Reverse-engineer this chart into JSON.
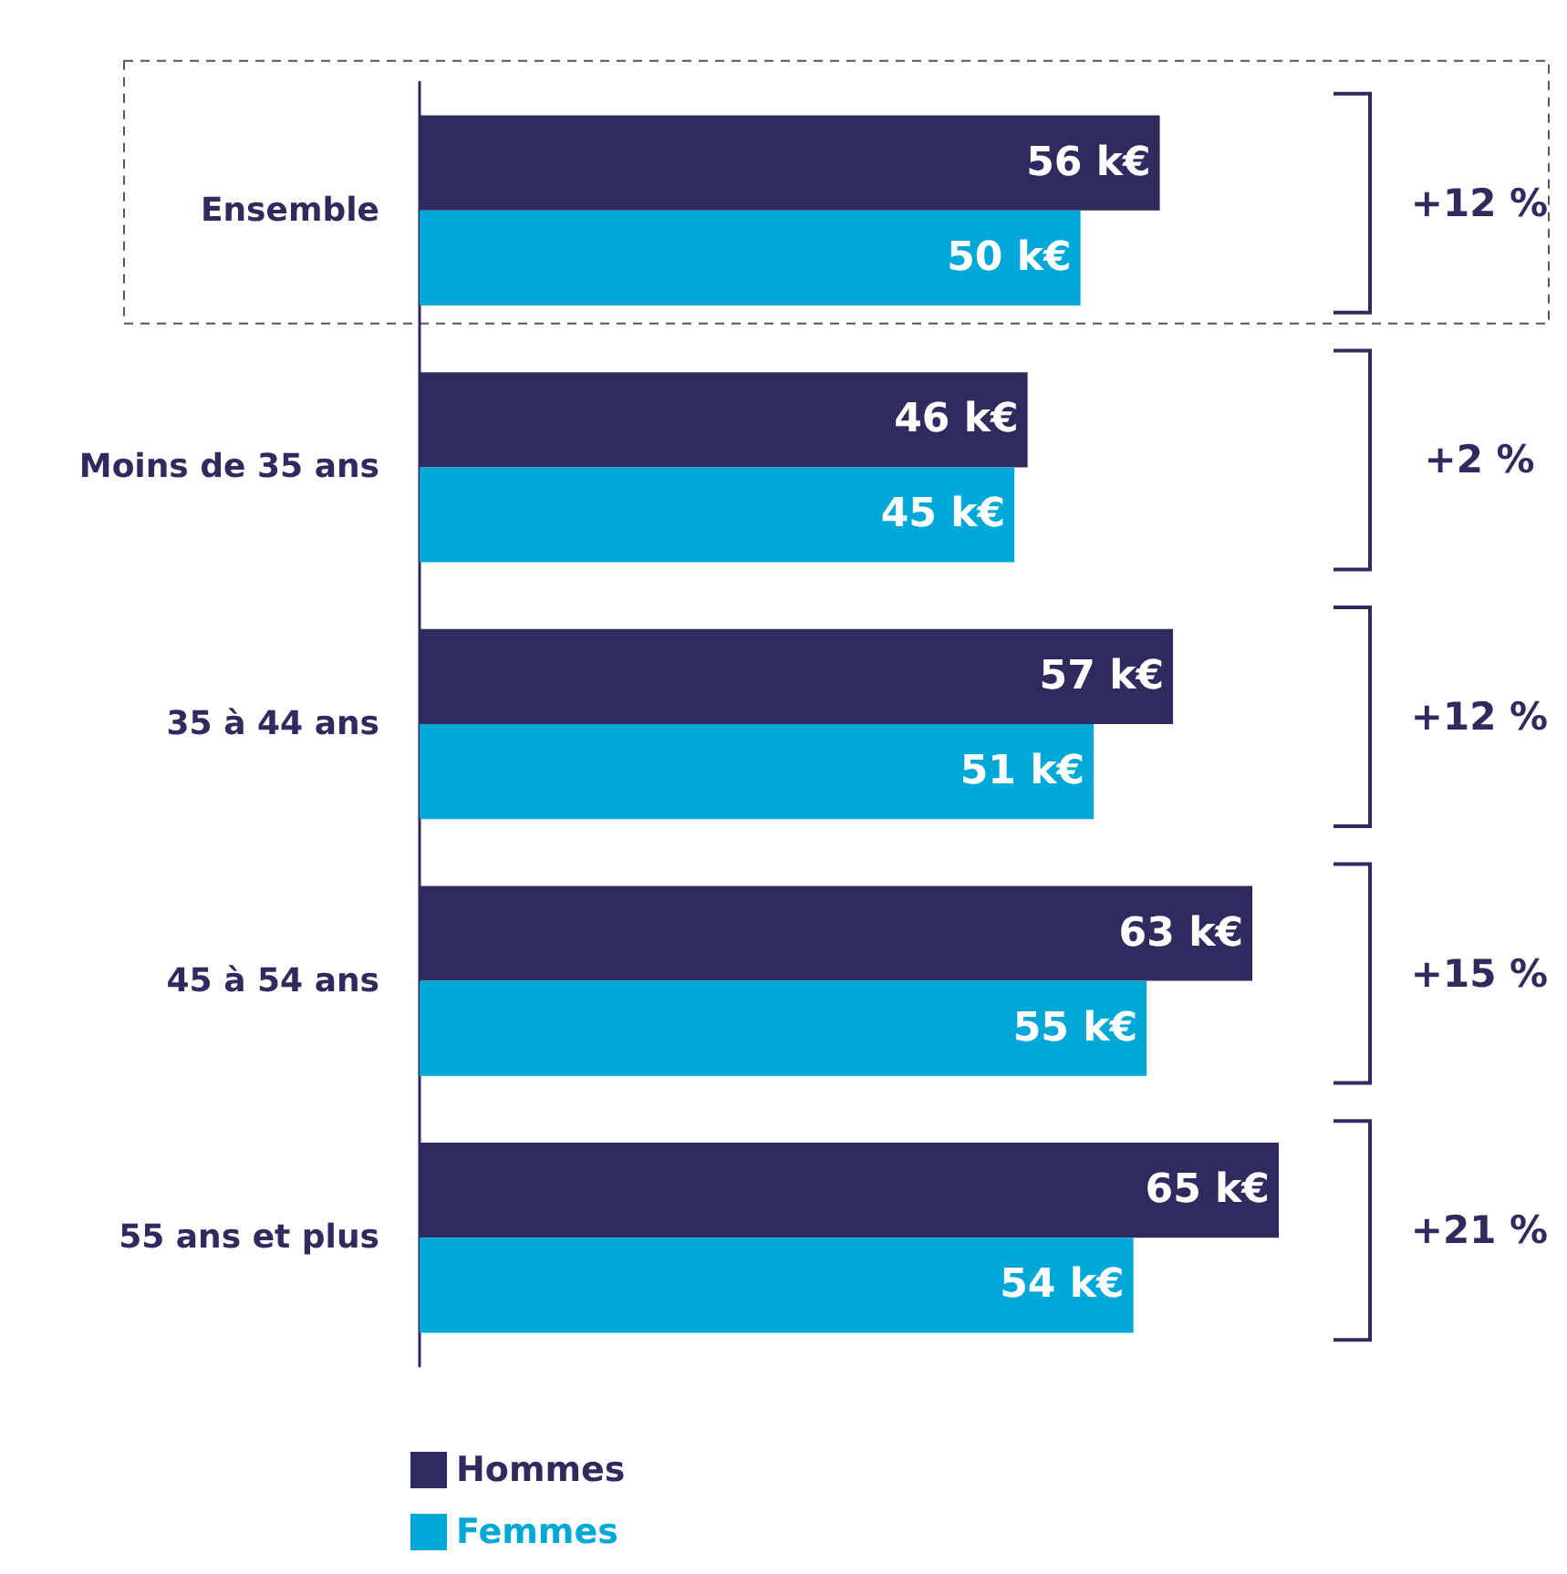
{
  "chart_data": {
    "type": "bar",
    "orientation": "horizontal",
    "categories": [
      "Ensemble",
      "Moins de 35 ans",
      "35 à 44 ans",
      "45 à 54 ans",
      "55 ans et plus"
    ],
    "series": [
      {
        "name": "Hommes",
        "color": "#302b5e",
        "values": [
          56,
          46,
          57,
          63,
          65
        ],
        "value_labels": [
          "56 k€",
          "46 k€",
          "57 k€",
          "63 k€",
          "65 k€"
        ]
      },
      {
        "name": "Femmes",
        "color": "#00a8d8",
        "values": [
          50,
          45,
          51,
          55,
          54
        ],
        "value_labels": [
          "50 k€",
          "45 k€",
          "51 k€",
          "55 k€",
          "54 k€"
        ]
      }
    ],
    "annotations": [
      "+12 %",
      "+2 %",
      "+12 %",
      "+15 %",
      "+21 %"
    ],
    "legend": "bottom left"
  }
}
